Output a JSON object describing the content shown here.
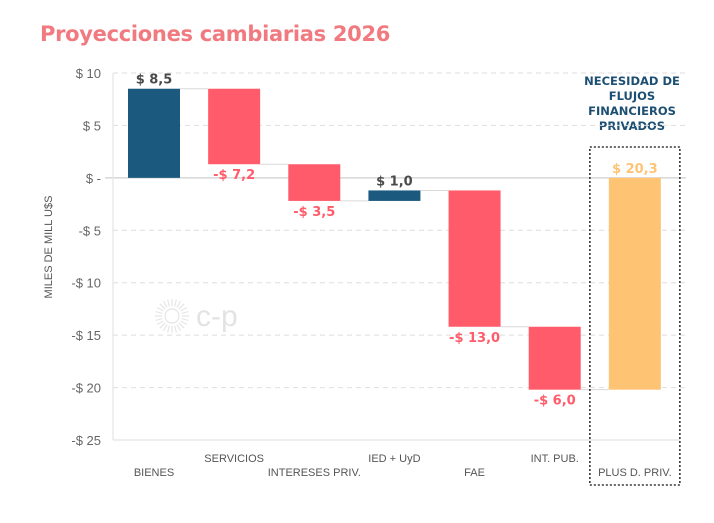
{
  "chart_data": {
    "type": "bar",
    "subtype": "waterfall",
    "title": "Proyecciones cambiarias 2026",
    "xlabel": "",
    "ylabel": "MILES DE MILL U$S",
    "ylim": [
      -25,
      10
    ],
    "yticks": [
      10,
      5,
      0,
      -5,
      -10,
      -15,
      -20,
      -25
    ],
    "ytick_labels": [
      "$ 10",
      "$ 5",
      "$ -",
      "-$ 5",
      "-$ 10",
      "-$ 15",
      "-$ 20",
      "-$ 25"
    ],
    "grid": true,
    "categories": [
      "BIENES",
      "SERVICIOS",
      "INTERESES PRIV.",
      "IED + UyD",
      "FAE",
      "INT. PUB.",
      "PLUS D. PRIV."
    ],
    "values": [
      8.5,
      -7.2,
      -3.5,
      1.0,
      -13.0,
      -6.0,
      20.3
    ],
    "bar_ranges": [
      [
        0,
        8.5
      ],
      [
        8.5,
        1.3
      ],
      [
        1.3,
        -2.2
      ],
      [
        -2.2,
        -1.2
      ],
      [
        -1.2,
        -14.2
      ],
      [
        -14.2,
        -20.2
      ],
      [
        -20.2,
        0
      ]
    ],
    "data_labels": [
      "$ 8,5",
      "-$ 7,2",
      "-$ 3,5",
      "$ 1,0",
      "-$ 13,0",
      "-$ 6,0",
      "$ 20,3"
    ],
    "colors": {
      "positive": "#1b5a7e",
      "negative": "#ff5b6b",
      "total": "#ffc374",
      "title": "#f07a80",
      "annotation": "#1d4f73"
    },
    "annotation": "NECESIDAD DE FLUJOS FINANCIEROS PRIVADOS",
    "highlight_category": "PLUS D. PRIV.",
    "watermark": "c-p"
  }
}
